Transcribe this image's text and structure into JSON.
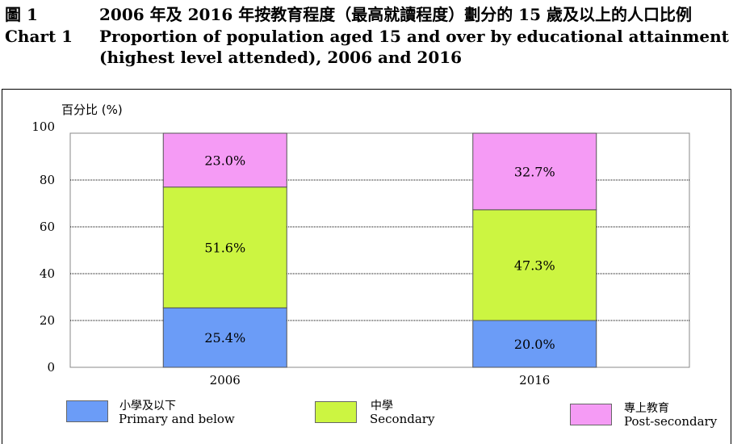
{
  "header": {
    "label_zh": "圖 1",
    "label_en": "Chart 1",
    "title_zh": "2006 年及 2016 年按教育程度（最高就讀程度）劃分的 15 歲及以上的人口比例",
    "title_en_line1": "Proportion of population aged 15 and over by educational attainment",
    "title_en_line2": "(highest level attended), 2006 and 2016"
  },
  "chart_data": {
    "type": "bar",
    "stacked": true,
    "categories": [
      "2006",
      "2016"
    ],
    "ylabel": "百分比  (%)",
    "ylim": [
      0,
      100
    ],
    "yticks": [
      0,
      20,
      40,
      60,
      80,
      100
    ],
    "grid": true,
    "legend_position": "bottom",
    "series": [
      {
        "name_zh": "小學及以下",
        "name_en": "Primary and below",
        "values": [
          25.4,
          20.0
        ],
        "labels": [
          "25.4%",
          "20.0%"
        ],
        "color": "#6b9cf7"
      },
      {
        "name_zh": "中學",
        "name_en": "Secondary",
        "values": [
          51.6,
          47.3
        ],
        "labels": [
          "51.6%",
          "47.3%"
        ],
        "color": "#ccf541"
      },
      {
        "name_zh": "專上教育",
        "name_en": "Post-secondary",
        "values": [
          23.0,
          32.7
        ],
        "labels": [
          "23.0%",
          "32.7%"
        ],
        "color": "#f59bf5"
      }
    ]
  }
}
